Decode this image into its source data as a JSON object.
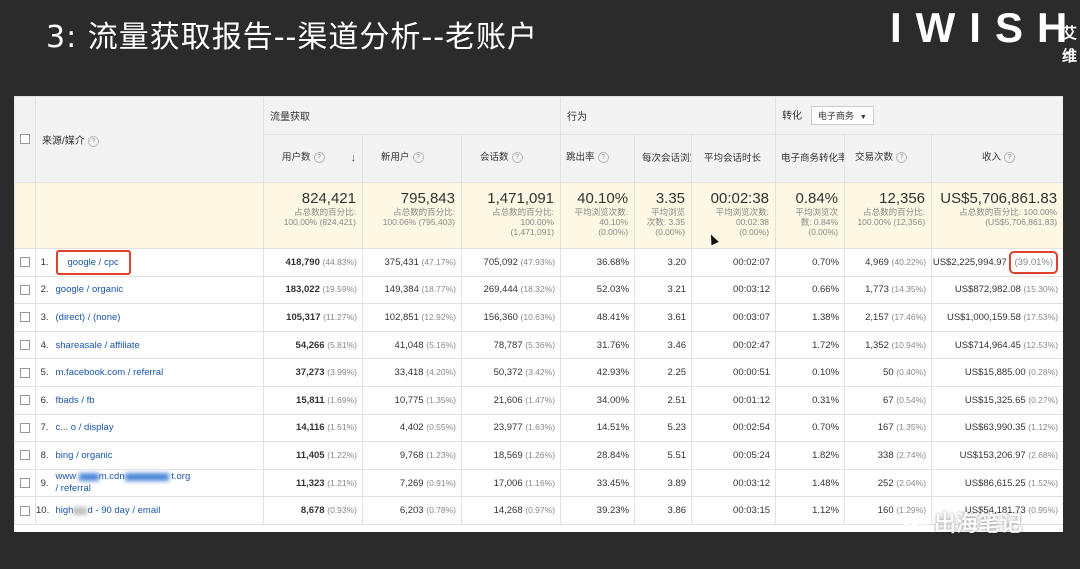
{
  "slide": {
    "title": "3: 流量获取报告--渠道分析--老账户",
    "brand": "IWISH",
    "brand_side": "艾维",
    "watermark": "出海笔记"
  },
  "header": {
    "source_medium": "来源/媒介",
    "groups": {
      "acquisition": "流量获取",
      "behavior": "行为",
      "conversions": "转化",
      "conversion_select": "电子商务"
    },
    "columns": {
      "users": "用户数",
      "new_users": "新用户",
      "sessions": "会话数",
      "bounce_rate": "跳出率",
      "pages_per_session": "每次会话浏览页数",
      "avg_session_duration": "平均会话时长",
      "ecommerce_conversion_rate": "电子商务转化率",
      "transactions": "交易次数",
      "revenue": "收入"
    },
    "help_icon": "?"
  },
  "totals": {
    "users": {
      "value": "824,421",
      "sub1": "占总数的百分比:",
      "sub2": "100.00% (824,421)"
    },
    "new_users": {
      "value": "795,843",
      "sub1": "占总数的百分比:",
      "sub2": "100.06% (795,403)"
    },
    "sessions": {
      "value": "1,471,091",
      "sub1": "占总数的百分比:",
      "sub2": "100.00%",
      "sub3": "(1,471,091)"
    },
    "bounce_rate": {
      "value": "40.10%",
      "sub1": "平均浏览次数:",
      "sub2": "40.10%",
      "sub3": "(0.00%)"
    },
    "pages_per_session": {
      "value": "3.35",
      "sub1": "平均浏览",
      "sub2": "次数: 3.35",
      "sub3": "(0.00%)"
    },
    "avg_session_duration": {
      "value": "00:02:38",
      "sub1": "平均浏览次数:",
      "sub2": "00:02:38",
      "sub3": "(0.00%)"
    },
    "ecommerce_conversion_rate": {
      "value": "0.84%",
      "sub1": "平均浏览次",
      "sub2": "数: 0.84%",
      "sub3": "(0.00%)"
    },
    "transactions": {
      "value": "12,356",
      "sub1": "占总数的百分比:",
      "sub2": "100.00% (12,356)"
    },
    "revenue": {
      "value": "US$5,706,861.83",
      "sub1": "占总数的百分比: 100.00%",
      "sub2": "(US$5,706,861.83)"
    }
  },
  "rows": [
    {
      "n": "1.",
      "src": "google / cpc",
      "users": "418,790",
      "users_pct": "(44.83%)",
      "new_users": "375,431",
      "new_users_pct": "(47.17%)",
      "sessions": "705,092",
      "sessions_pct": "(47.93%)",
      "bounce": "36.68%",
      "pps": "3.20",
      "dur": "00:02:07",
      "cr": "0.70%",
      "tx": "4,969",
      "tx_pct": "(40.22%)",
      "rev": "US$2,225,994.97",
      "rev_pct": "(39.01%)"
    },
    {
      "n": "2.",
      "src": "google / organic",
      "users": "183,022",
      "users_pct": "(19.59%)",
      "new_users": "149,384",
      "new_users_pct": "(18.77%)",
      "sessions": "269,444",
      "sessions_pct": "(18.32%)",
      "bounce": "52.03%",
      "pps": "3.21",
      "dur": "00:03:12",
      "cr": "0.66%",
      "tx": "1,773",
      "tx_pct": "(14.35%)",
      "rev": "US$872,982.08",
      "rev_pct": "(15.30%)"
    },
    {
      "n": "3.",
      "src": "(direct) / (none)",
      "users": "105,317",
      "users_pct": "(11.27%)",
      "new_users": "102,851",
      "new_users_pct": "(12.92%)",
      "sessions": "156,360",
      "sessions_pct": "(10.63%)",
      "bounce": "48.41%",
      "pps": "3.61",
      "dur": "00:03:07",
      "cr": "1.38%",
      "tx": "2,157",
      "tx_pct": "(17.46%)",
      "rev": "US$1,000,159.58",
      "rev_pct": "(17.53%)"
    },
    {
      "n": "4.",
      "src": "shareasale / affiliate",
      "users": "54,266",
      "users_pct": "(5.81%)",
      "new_users": "41,048",
      "new_users_pct": "(5.16%)",
      "sessions": "78,787",
      "sessions_pct": "(5.36%)",
      "bounce": "31.76%",
      "pps": "3.46",
      "dur": "00:02:47",
      "cr": "1.72%",
      "tx": "1,352",
      "tx_pct": "(10.94%)",
      "rev": "US$714,964.45",
      "rev_pct": "(12.53%)"
    },
    {
      "n": "5.",
      "src": "m.facebook.com / referral",
      "users": "37,273",
      "users_pct": "(3.99%)",
      "new_users": "33,418",
      "new_users_pct": "(4.20%)",
      "sessions": "50,372",
      "sessions_pct": "(3.42%)",
      "bounce": "42.93%",
      "pps": "2.25",
      "dur": "00:00:51",
      "cr": "0.10%",
      "tx": "50",
      "tx_pct": "(0.40%)",
      "rev": "US$15,885.00",
      "rev_pct": "(0.28%)"
    },
    {
      "n": "6.",
      "src": "fbads / fb",
      "users": "15,811",
      "users_pct": "(1.69%)",
      "new_users": "10,775",
      "new_users_pct": "(1.35%)",
      "sessions": "21,606",
      "sessions_pct": "(1.47%)",
      "bounce": "34.00%",
      "pps": "2.51",
      "dur": "00:01:12",
      "cr": "0.31%",
      "tx": "67",
      "tx_pct": "(0.54%)",
      "rev": "US$15,325.65",
      "rev_pct": "(0.27%)"
    },
    {
      "n": "7.",
      "src": "c... o / display",
      "users": "14,116",
      "users_pct": "(1.51%)",
      "new_users": "4,402",
      "new_users_pct": "(0.55%)",
      "sessions": "23,977",
      "sessions_pct": "(1.63%)",
      "bounce": "14.51%",
      "pps": "5.23",
      "dur": "00:02:54",
      "cr": "0.70%",
      "tx": "167",
      "tx_pct": "(1.35%)",
      "rev": "US$63,990.35",
      "rev_pct": "(1.12%)"
    },
    {
      "n": "8.",
      "src": "bing / organic",
      "users": "11,405",
      "users_pct": "(1.22%)",
      "new_users": "9,768",
      "new_users_pct": "(1.23%)",
      "sessions": "18,569",
      "sessions_pct": "(1.26%)",
      "bounce": "28.84%",
      "pps": "5.51",
      "dur": "00:05:24",
      "cr": "1.82%",
      "tx": "338",
      "tx_pct": "(2.74%)",
      "rev": "US$153,206.97",
      "rev_pct": "(2.68%)"
    },
    {
      "n": "9.",
      "src_a": "www",
      "src_b": "m.cdn",
      "src_c": "t.org",
      "src_d": "/ referral",
      "users": "11,323",
      "users_pct": "(1.21%)",
      "new_users": "7,269",
      "new_users_pct": "(0.91%)",
      "sessions": "17,006",
      "sessions_pct": "(1.16%)",
      "bounce": "33.45%",
      "pps": "3.89",
      "dur": "00:03:12",
      "cr": "1.48%",
      "tx": "252",
      "tx_pct": "(2.04%)",
      "rev": "US$86,615.25",
      "rev_pct": "(1.52%)"
    },
    {
      "n": "10.",
      "src_a": "high",
      "src_b": "d - 90 day / email",
      "users": "8,678",
      "users_pct": "(0.93%)",
      "new_users": "6,203",
      "new_users_pct": "(0.78%)",
      "sessions": "14,268",
      "sessions_pct": "(0.97%)",
      "bounce": "39.23%",
      "pps": "3.86",
      "dur": "00:03:15",
      "cr": "1.12%",
      "tx": "160",
      "tx_pct": "(1.29%)",
      "rev": "US$54,181.73",
      "rev_pct": "(0.95%)"
    }
  ]
}
